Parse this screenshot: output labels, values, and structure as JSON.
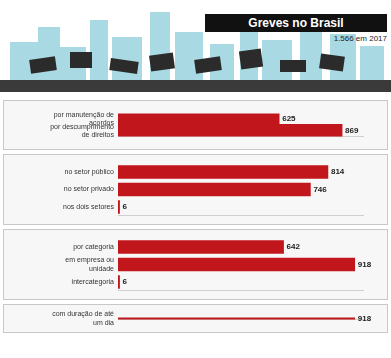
{
  "header": {
    "title": "Greves no Brasil",
    "subtitle": "1.566 em 2017"
  },
  "chart_data": [
    {
      "type": "bar",
      "orientation": "horizontal",
      "categories": [
        "por manutenção de acordos",
        "por descumprimento de direitos"
      ],
      "values": [
        625,
        869
      ],
      "color": "#c1161c",
      "xlim": [
        0,
        950
      ],
      "data_labels": true,
      "tick_labels": "y",
      "grid": false
    },
    {
      "type": "bar",
      "orientation": "horizontal",
      "categories": [
        "no setor público",
        "no setor privado",
        "nos dois setores"
      ],
      "values": [
        814,
        746,
        6
      ],
      "color": "#c1161c",
      "xlim": [
        0,
        950
      ],
      "data_labels": true,
      "tick_labels": "y",
      "grid": false
    },
    {
      "type": "bar",
      "orientation": "horizontal",
      "categories": [
        "por categoria",
        "em empresa ou unidade",
        "intercategoria"
      ],
      "values": [
        642,
        918,
        6
      ],
      "color": "#c1161c",
      "xlim": [
        0,
        950
      ],
      "data_labels": true,
      "tick_labels": "y",
      "grid": false
    },
    {
      "type": "bar",
      "orientation": "horizontal",
      "categories": [
        "com duração de até um dia"
      ],
      "values": [
        918
      ],
      "color": "#c1161c",
      "xlim": [
        0,
        950
      ],
      "data_labels": true,
      "tick_labels": "y",
      "grid": false
    }
  ]
}
